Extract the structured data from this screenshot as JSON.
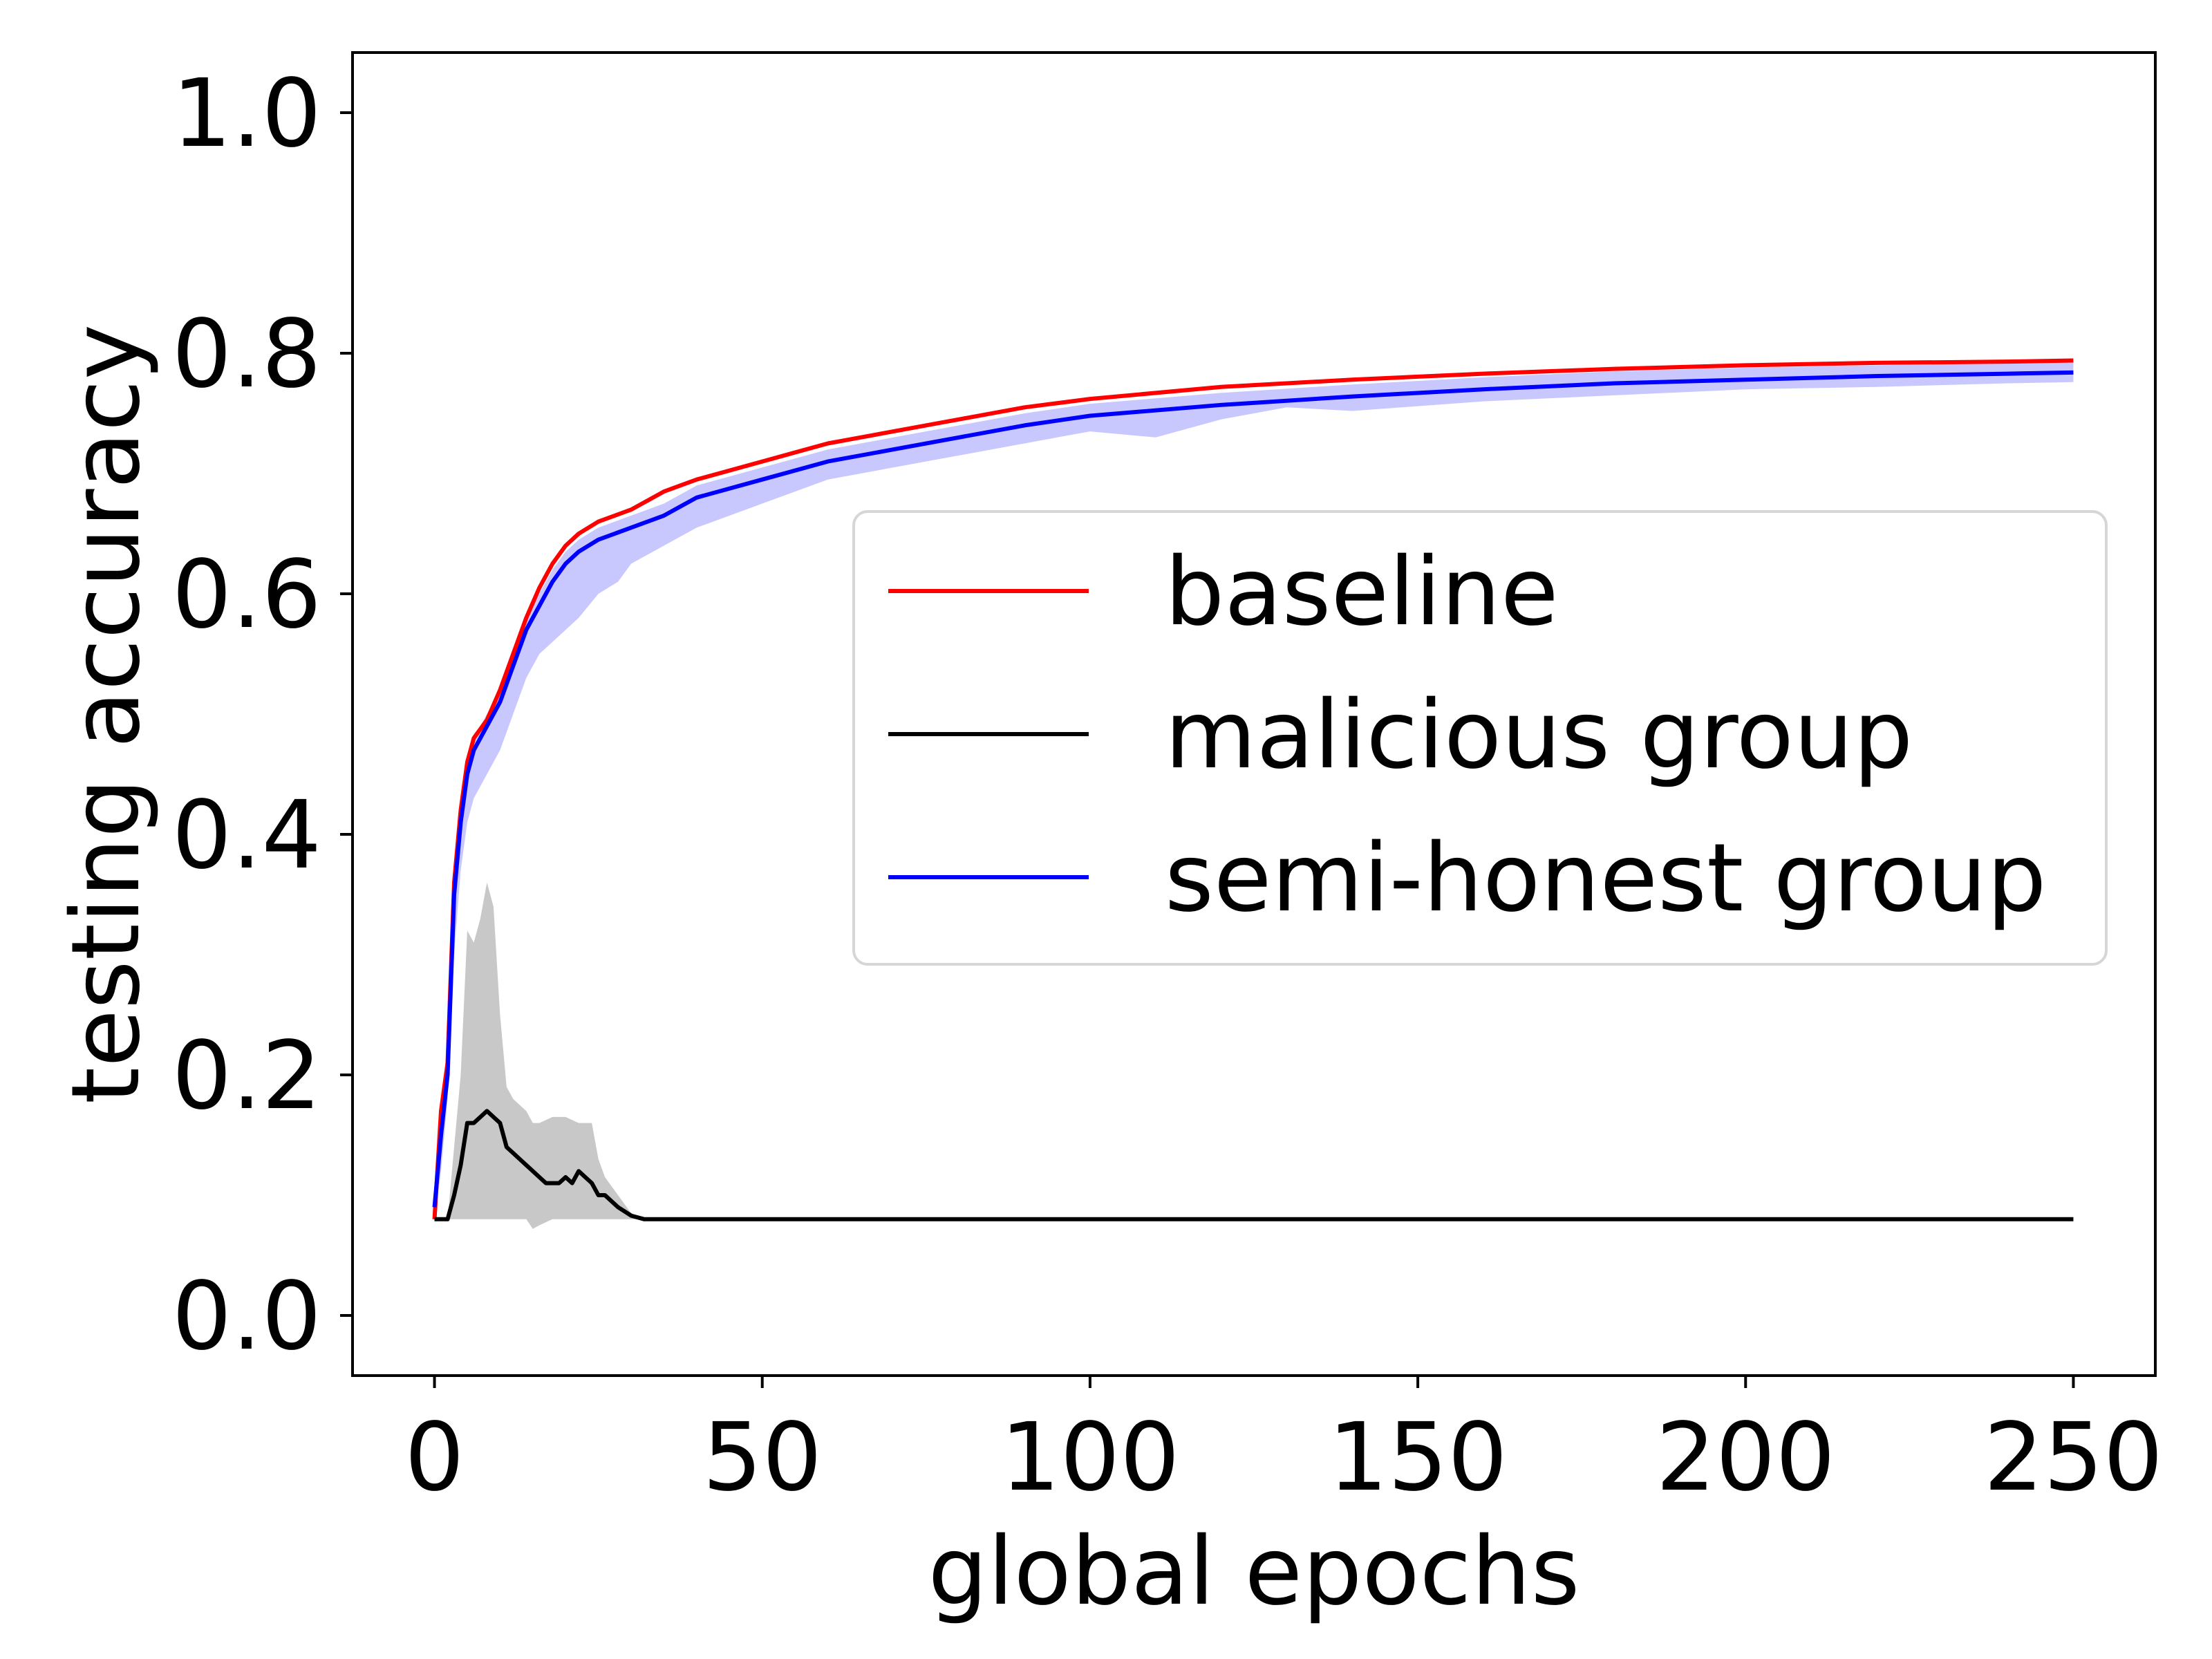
{
  "chart_data": {
    "type": "line",
    "title": "",
    "xlabel": "global epochs",
    "ylabel": "testing accuracy",
    "xlim": [
      -12.5,
      262.5
    ],
    "ylim": [
      -0.05,
      1.05
    ],
    "xticks": [
      0,
      50,
      100,
      150,
      200,
      250
    ],
    "yticks": [
      0.0,
      0.2,
      0.4,
      0.6,
      0.8,
      1.0
    ],
    "xtick_labels": [
      "0",
      "50",
      "100",
      "150",
      "200",
      "250"
    ],
    "ytick_labels": [
      "0.0",
      "0.2",
      "0.4",
      "0.6",
      "0.8",
      "1.0"
    ],
    "grid": false,
    "legend_position": "center-right",
    "series": [
      {
        "name": "baseline",
        "color": "#ff0000",
        "points": [
          [
            0,
            0.08
          ],
          [
            1,
            0.17
          ],
          [
            2,
            0.21
          ],
          [
            3,
            0.36
          ],
          [
            4,
            0.42
          ],
          [
            5,
            0.46
          ],
          [
            6,
            0.48
          ],
          [
            8,
            0.495
          ],
          [
            10,
            0.52
          ],
          [
            12,
            0.55
          ],
          [
            14,
            0.58
          ],
          [
            16,
            0.605
          ],
          [
            18,
            0.625
          ],
          [
            20,
            0.64
          ],
          [
            22,
            0.65
          ],
          [
            25,
            0.66
          ],
          [
            30,
            0.67
          ],
          [
            35,
            0.685
          ],
          [
            40,
            0.695
          ],
          [
            50,
            0.71
          ],
          [
            60,
            0.725
          ],
          [
            70,
            0.735
          ],
          [
            80,
            0.745
          ],
          [
            90,
            0.755
          ],
          [
            100,
            0.762
          ],
          [
            120,
            0.772
          ],
          [
            140,
            0.778
          ],
          [
            160,
            0.783
          ],
          [
            180,
            0.787
          ],
          [
            200,
            0.79
          ],
          [
            220,
            0.792
          ],
          [
            240,
            0.793
          ],
          [
            250,
            0.794
          ]
        ]
      },
      {
        "name": "malicious group",
        "color": "#000000",
        "points": [
          [
            0,
            0.08
          ],
          [
            2,
            0.08
          ],
          [
            3,
            0.1
          ],
          [
            4,
            0.125
          ],
          [
            5,
            0.16
          ],
          [
            6,
            0.16
          ],
          [
            7,
            0.165
          ],
          [
            8,
            0.17
          ],
          [
            9,
            0.165
          ],
          [
            10,
            0.16
          ],
          [
            11,
            0.14
          ],
          [
            12,
            0.135
          ],
          [
            13,
            0.13
          ],
          [
            14,
            0.125
          ],
          [
            15,
            0.12
          ],
          [
            16,
            0.115
          ],
          [
            17,
            0.11
          ],
          [
            18,
            0.11
          ],
          [
            19,
            0.11
          ],
          [
            20,
            0.115
          ],
          [
            21,
            0.11
          ],
          [
            22,
            0.12
          ],
          [
            23,
            0.115
          ],
          [
            24,
            0.11
          ],
          [
            25,
            0.1
          ],
          [
            26,
            0.1
          ],
          [
            27,
            0.095
          ],
          [
            28,
            0.09
          ],
          [
            30,
            0.083
          ],
          [
            32,
            0.08
          ],
          [
            40,
            0.08
          ],
          [
            100,
            0.08
          ],
          [
            150,
            0.08
          ],
          [
            200,
            0.08
          ],
          [
            250,
            0.08
          ]
        ]
      },
      {
        "name": "semi-honest group",
        "color": "#0000ff",
        "points": [
          [
            0,
            0.09
          ],
          [
            1,
            0.15
          ],
          [
            2,
            0.2
          ],
          [
            3,
            0.35
          ],
          [
            4,
            0.41
          ],
          [
            5,
            0.45
          ],
          [
            6,
            0.47
          ],
          [
            8,
            0.49
          ],
          [
            10,
            0.51
          ],
          [
            12,
            0.54
          ],
          [
            14,
            0.57
          ],
          [
            16,
            0.59
          ],
          [
            18,
            0.61
          ],
          [
            20,
            0.625
          ],
          [
            22,
            0.635
          ],
          [
            25,
            0.645
          ],
          [
            30,
            0.655
          ],
          [
            35,
            0.665
          ],
          [
            40,
            0.68
          ],
          [
            50,
            0.695
          ],
          [
            60,
            0.71
          ],
          [
            70,
            0.72
          ],
          [
            80,
            0.73
          ],
          [
            90,
            0.74
          ],
          [
            100,
            0.748
          ],
          [
            120,
            0.757
          ],
          [
            140,
            0.764
          ],
          [
            160,
            0.77
          ],
          [
            180,
            0.775
          ],
          [
            200,
            0.778
          ],
          [
            220,
            0.781
          ],
          [
            240,
            0.783
          ],
          [
            250,
            0.784
          ]
        ]
      }
    ],
    "bands": [
      {
        "series": "semi-honest group",
        "color": "#c8c8ff",
        "upper": [
          [
            0,
            0.09
          ],
          [
            1,
            0.16
          ],
          [
            2,
            0.21
          ],
          [
            3,
            0.36
          ],
          [
            4,
            0.42
          ],
          [
            5,
            0.46
          ],
          [
            6,
            0.48
          ],
          [
            8,
            0.5
          ],
          [
            10,
            0.52
          ],
          [
            12,
            0.55
          ],
          [
            14,
            0.58
          ],
          [
            16,
            0.6
          ],
          [
            18,
            0.62
          ],
          [
            20,
            0.635
          ],
          [
            22,
            0.645
          ],
          [
            25,
            0.655
          ],
          [
            30,
            0.665
          ],
          [
            35,
            0.675
          ],
          [
            40,
            0.69
          ],
          [
            50,
            0.705
          ],
          [
            60,
            0.72
          ],
          [
            70,
            0.73
          ],
          [
            80,
            0.74
          ],
          [
            90,
            0.75
          ],
          [
            100,
            0.758
          ],
          [
            120,
            0.767
          ],
          [
            140,
            0.774
          ],
          [
            160,
            0.78
          ],
          [
            180,
            0.785
          ],
          [
            200,
            0.788
          ],
          [
            220,
            0.79
          ],
          [
            240,
            0.792
          ],
          [
            250,
            0.793
          ]
        ],
        "lower": [
          [
            0,
            0.08
          ],
          [
            1,
            0.12
          ],
          [
            2,
            0.18
          ],
          [
            3,
            0.3
          ],
          [
            4,
            0.37
          ],
          [
            5,
            0.41
          ],
          [
            6,
            0.43
          ],
          [
            8,
            0.45
          ],
          [
            10,
            0.47
          ],
          [
            12,
            0.5
          ],
          [
            14,
            0.53
          ],
          [
            16,
            0.55
          ],
          [
            18,
            0.56
          ],
          [
            20,
            0.57
          ],
          [
            22,
            0.58
          ],
          [
            25,
            0.6
          ],
          [
            28,
            0.61
          ],
          [
            30,
            0.625
          ],
          [
            35,
            0.64
          ],
          [
            40,
            0.655
          ],
          [
            50,
            0.675
          ],
          [
            60,
            0.695
          ],
          [
            70,
            0.705
          ],
          [
            80,
            0.715
          ],
          [
            90,
            0.725
          ],
          [
            100,
            0.735
          ],
          [
            110,
            0.73
          ],
          [
            120,
            0.745
          ],
          [
            130,
            0.755
          ],
          [
            140,
            0.752
          ],
          [
            160,
            0.76
          ],
          [
            180,
            0.765
          ],
          [
            200,
            0.77
          ],
          [
            220,
            0.772
          ],
          [
            240,
            0.775
          ],
          [
            250,
            0.776
          ]
        ]
      },
      {
        "series": "malicious group",
        "color": "#c8c8c8",
        "upper": [
          [
            0,
            0.08
          ],
          [
            2,
            0.08
          ],
          [
            4,
            0.2
          ],
          [
            5,
            0.32
          ],
          [
            6,
            0.31
          ],
          [
            7,
            0.33
          ],
          [
            8,
            0.36
          ],
          [
            9,
            0.34
          ],
          [
            10,
            0.25
          ],
          [
            11,
            0.19
          ],
          [
            12,
            0.18
          ],
          [
            13,
            0.175
          ],
          [
            14,
            0.17
          ],
          [
            15,
            0.16
          ],
          [
            16,
            0.16
          ],
          [
            18,
            0.165
          ],
          [
            20,
            0.165
          ],
          [
            22,
            0.16
          ],
          [
            24,
            0.16
          ],
          [
            25,
            0.13
          ],
          [
            26,
            0.115
          ],
          [
            28,
            0.1
          ],
          [
            30,
            0.085
          ],
          [
            32,
            0.08
          ],
          [
            250,
            0.08
          ]
        ],
        "lower": [
          [
            0,
            0.08
          ],
          [
            2,
            0.08
          ],
          [
            4,
            0.08
          ],
          [
            6,
            0.08
          ],
          [
            8,
            0.08
          ],
          [
            10,
            0.08
          ],
          [
            12,
            0.08
          ],
          [
            14,
            0.08
          ],
          [
            15,
            0.072
          ],
          [
            16,
            0.075
          ],
          [
            18,
            0.08
          ],
          [
            20,
            0.08
          ],
          [
            24,
            0.08
          ],
          [
            28,
            0.08
          ],
          [
            32,
            0.08
          ],
          [
            250,
            0.08
          ]
        ]
      }
    ]
  }
}
